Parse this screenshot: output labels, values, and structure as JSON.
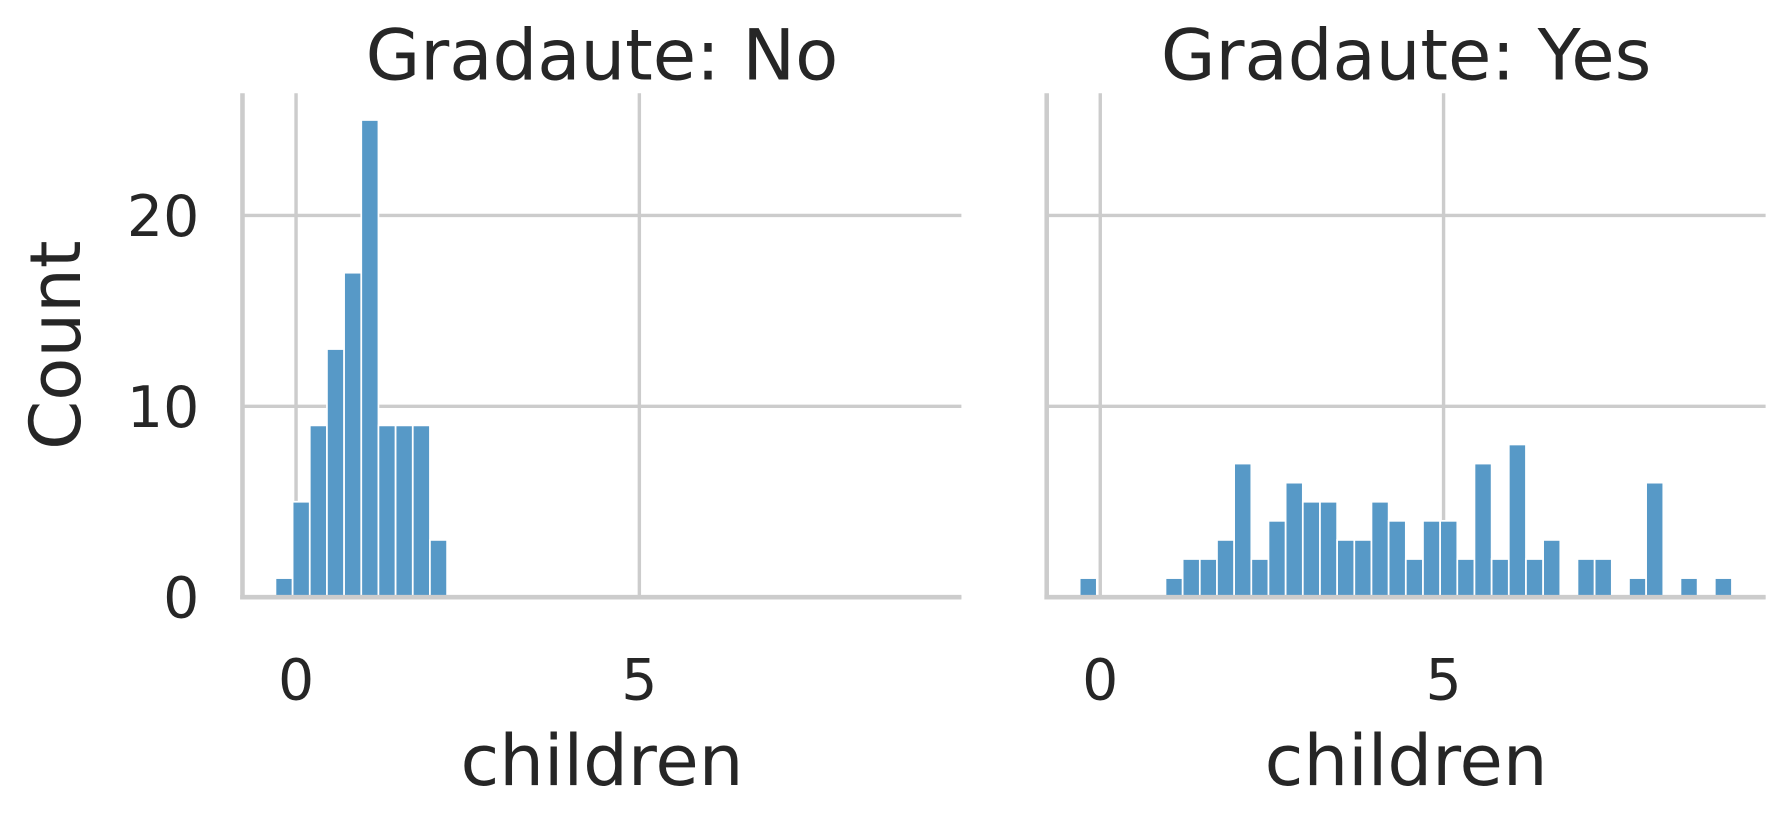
{
  "chart_data": [
    {
      "type": "histogram",
      "title": "Gradaute: No",
      "xlabel": "children",
      "ylabel": "Count",
      "bins": [
        -0.3,
        -0.05,
        0.2,
        0.45,
        0.7,
        0.95,
        1.2,
        1.45,
        1.7,
        1.95,
        2.2,
        2.45,
        2.7,
        2.95,
        3.2,
        3.45,
        3.7,
        3.95,
        4.2,
        4.45,
        4.7,
        4.95,
        5.2,
        5.45,
        5.7,
        5.95,
        6.2,
        6.45,
        6.7,
        6.95,
        7.2,
        7.45,
        7.7,
        7.95,
        8.2,
        8.45,
        8.7,
        8.95,
        9.2
      ],
      "values": [
        1,
        5,
        9,
        13,
        17,
        25,
        9,
        9,
        9,
        3,
        0,
        0,
        0,
        0,
        0,
        0,
        0,
        0,
        0,
        0,
        0,
        0,
        0,
        0,
        0,
        0,
        0,
        0,
        0,
        0,
        0,
        0,
        0,
        0,
        0,
        0,
        0,
        0
      ],
      "color": "#5799c7",
      "xlim": [
        -0.78,
        9.69
      ],
      "xticks": [
        0,
        5
      ],
      "ylim": [
        0,
        26.4
      ],
      "yticks": [
        0,
        10,
        20
      ],
      "grid": true
    },
    {
      "type": "histogram",
      "title": "Gradaute: Yes",
      "xlabel": "children",
      "bins": [
        -0.3,
        -0.05,
        0.2,
        0.45,
        0.7,
        0.95,
        1.2,
        1.45,
        1.7,
        1.95,
        2.2,
        2.45,
        2.7,
        2.95,
        3.2,
        3.45,
        3.7,
        3.95,
        4.2,
        4.45,
        4.7,
        4.95,
        5.2,
        5.45,
        5.7,
        5.95,
        6.2,
        6.45,
        6.7,
        6.95,
        7.2,
        7.45,
        7.7,
        7.95,
        8.2,
        8.45,
        8.7,
        8.95,
        9.2
      ],
      "values": [
        1,
        0,
        0,
        0,
        0,
        1,
        2,
        2,
        3,
        7,
        2,
        4,
        6,
        5,
        5,
        3,
        3,
        5,
        4,
        2,
        4,
        4,
        2,
        7,
        2,
        8,
        2,
        3,
        0,
        2,
        2,
        0,
        1,
        6,
        0,
        1,
        0,
        1
      ],
      "color": "#5799c7",
      "xlim": [
        -0.78,
        9.69
      ],
      "xticks": [
        0,
        5
      ],
      "ylim": [
        0,
        26.4
      ],
      "grid": true,
      "sharey": true
    }
  ]
}
